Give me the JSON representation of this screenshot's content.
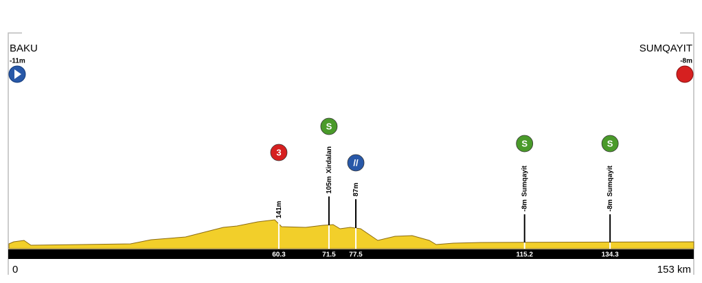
{
  "start": {
    "name": "BAKU",
    "altitude": "-11m"
  },
  "finish": {
    "name": "SUMQAYIT",
    "altitude": "-8m"
  },
  "axis": {
    "start": 0,
    "end": {
      "value": 153,
      "label": "153 km"
    }
  },
  "markers": [
    {
      "km": 60.3,
      "icon": "3",
      "color": "#d62020",
      "altitude": "141m"
    },
    {
      "km": 71.5,
      "icon": "S",
      "color": "#4a9a2a",
      "altitude": "105m",
      "place": "Xirdalan"
    },
    {
      "km": 77.5,
      "icon": "//",
      "color": "#2858a8",
      "altitude": "87m"
    },
    {
      "km": 115.2,
      "icon": "S",
      "color": "#4a9a2a",
      "altitude": "-8m",
      "place": "Sumqayit"
    },
    {
      "km": 134.3,
      "icon": "S",
      "color": "#4a9a2a",
      "altitude": "-8m",
      "place": "Sumqayit"
    }
  ]
}
